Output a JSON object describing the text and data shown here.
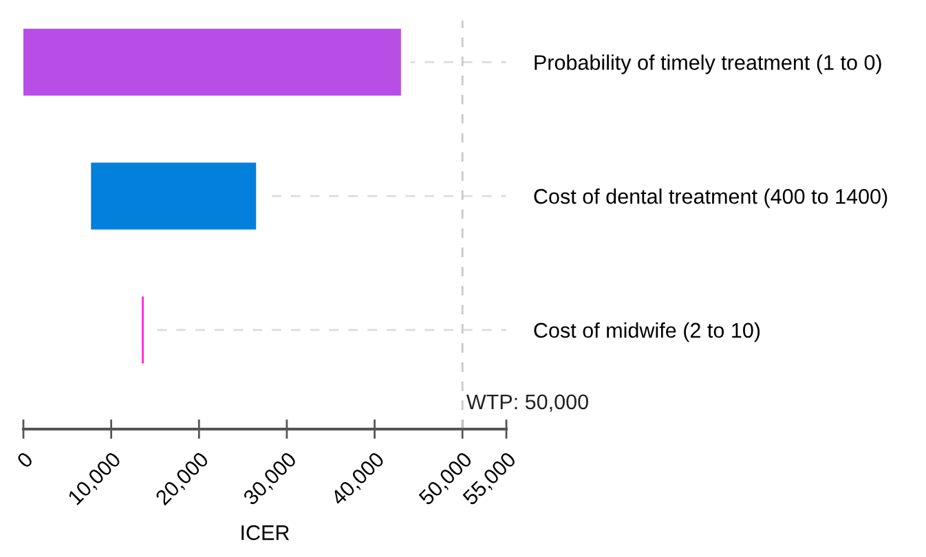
{
  "chart_data": {
    "type": "bar",
    "orientation": "horizontal",
    "xlabel": "ICER",
    "categories": [
      "Probability of timely treatment (1 to 0)",
      "Cost of dental treatment (400 to 1400)",
      "Cost of midwife (2 to 10)"
    ],
    "base": [
      0,
      7700,
      13500
    ],
    "values": [
      43000,
      18800,
      200
    ],
    "colors": [
      "#b94ee6",
      "#0380dc",
      "#ff14d8"
    ],
    "xlim": [
      0,
      55000
    ],
    "xticks": [
      {
        "value": 0,
        "label": "0"
      },
      {
        "value": 10000,
        "label": "10,000"
      },
      {
        "value": 20000,
        "label": "20,000"
      },
      {
        "value": 30000,
        "label": "30,000"
      },
      {
        "value": 40000,
        "label": "40,000"
      },
      {
        "value": 50000,
        "label": "50,000"
      },
      {
        "value": 55000,
        "label": "55,000"
      }
    ],
    "ref_lines": [
      {
        "axis": "x",
        "value": 50000,
        "label": "WTP: 50,000",
        "color": "#c8c8c8",
        "line_style": "dashed"
      }
    ],
    "grid": "y",
    "legend": false
  }
}
